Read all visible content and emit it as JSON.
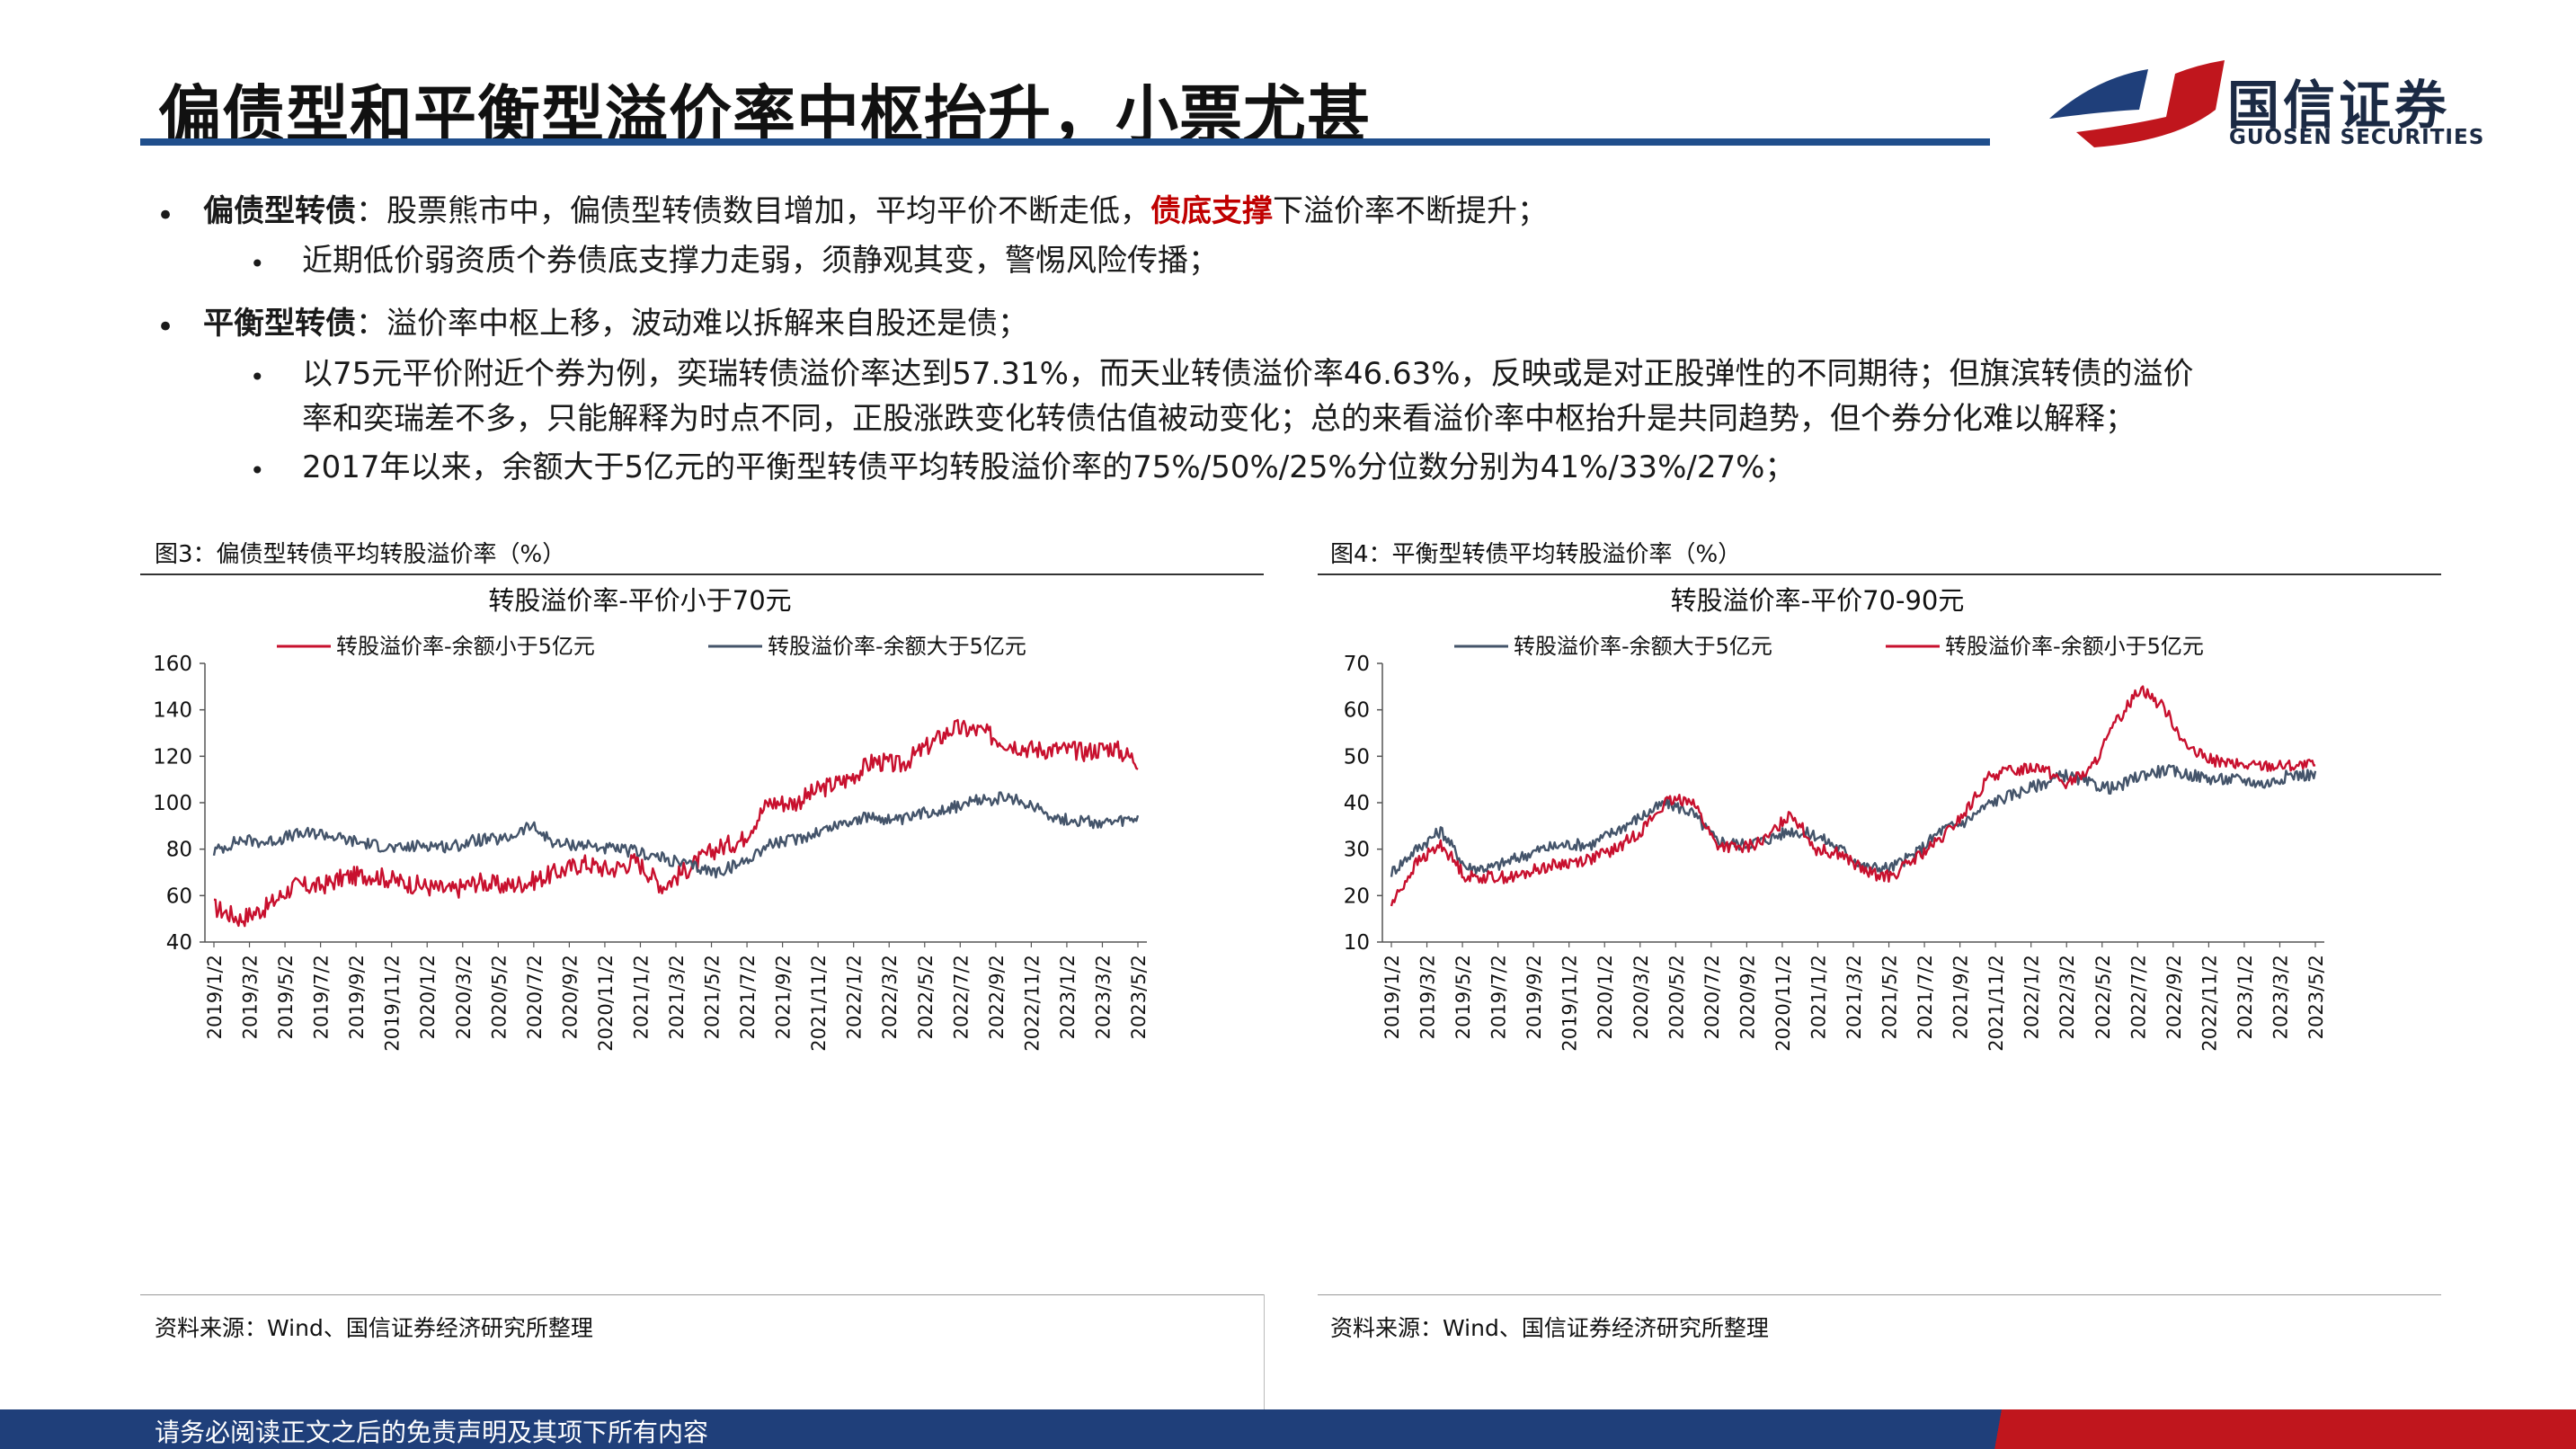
{
  "header": {
    "title": "偏债型和平衡型溢价率中枢抬升，小票尤甚",
    "logo_cn": "国信证券",
    "logo_en": "GUOSEN SECURITIES",
    "brand_colors": {
      "blue": "#1f4e8c",
      "red": "#c0161d"
    }
  },
  "bullets": {
    "b1_label": "偏债型转债",
    "b1_text_a": "：股票熊市中，偏债型转债数目增加，平均平价不断走低，",
    "b1_highlight": "债底支撑",
    "b1_text_b": "下溢价率不断提升；",
    "b1_sub1": "近期低价弱资质个券债底支撑力走弱，须静观其变，警惕风险传播；",
    "b2_label": "平衡型转债",
    "b2_text": "：溢价率中枢上移，波动难以拆解来自股还是债；",
    "b2_sub1_line1": "以75元平价附近个券为例，奕瑞转债溢价率达到57.31%，而天业转债溢价率46.63%，反映或是对正股弹性的不同期待；但旗滨转债的溢价",
    "b2_sub1_line2": "率和奕瑞差不多，只能解释为时点不同，正股涨跌变化转债估值被动变化；总的来看溢价率中枢抬升是共同趋势，但个券分化难以解释；",
    "b2_sub2": "2017年以来，余额大于5亿元的平衡型转债平均转股溢价率的75%/50%/25%分位数分别为41%/33%/27%；"
  },
  "panels": {
    "left_caption": "图3：偏债型转债平均转股溢价率（%）",
    "right_caption": "图4：平衡型转债平均转股溢价率（%）",
    "left_source": "资料来源：Wind、国信证券经济研究所整理",
    "right_source": "资料来源：Wind、国信证券经济研究所整理"
  },
  "footer": {
    "disclaimer": "请务必阅读正文之后的免责声明及其项下所有内容"
  },
  "chart_data": [
    {
      "type": "line",
      "title": "转股溢价率-平价小于70元",
      "ylim": [
        40,
        160
      ],
      "yticks": [
        40,
        60,
        80,
        100,
        120,
        140,
        160
      ],
      "xticks": [
        "2019/1/2",
        "2019/3/2",
        "2019/5/2",
        "2019/7/2",
        "2019/9/2",
        "2019/11/2",
        "2020/1/2",
        "2020/3/2",
        "2020/5/2",
        "2020/7/2",
        "2020/9/2",
        "2020/11/2",
        "2021/1/2",
        "2021/3/2",
        "2021/5/2",
        "2021/7/2",
        "2021/9/2",
        "2021/11/2",
        "2022/1/2",
        "2022/3/2",
        "2022/5/2",
        "2022/7/2",
        "2022/9/2",
        "2022/11/2",
        "2023/1/2",
        "2023/3/2",
        "2023/5/2"
      ],
      "series": [
        {
          "name": "转股溢价率-余额小于5亿元",
          "color": "#c8102e",
          "values": [
            55,
            50,
            55,
            64,
            64,
            68,
            69,
            66,
            64,
            62,
            66,
            64,
            66,
            70,
            74,
            71,
            75,
            64,
            72,
            80,
            84,
            100,
            100,
            106,
            110,
            118,
            116,
            124,
            132,
            131,
            126,
            123,
            123,
            122,
            124,
            118
          ]
        },
        {
          "name": "转股溢价率-余额大于5亿元",
          "color": "#44546a",
          "values": [
            79,
            84,
            83,
            86,
            87,
            84,
            82,
            80,
            82,
            81,
            84,
            84,
            90,
            82,
            82,
            80,
            79,
            76,
            73,
            70,
            74,
            82,
            84,
            88,
            92,
            94,
            92,
            96,
            98,
            101,
            102,
            99,
            93,
            92,
            91,
            93
          ]
        }
      ]
    },
    {
      "type": "line",
      "title": "转股溢价率-平价70-90元",
      "ylim": [
        10,
        70
      ],
      "yticks": [
        10,
        20,
        30,
        40,
        50,
        60,
        70
      ],
      "xticks": [
        "2019/1/2",
        "2019/3/2",
        "2019/5/2",
        "2019/7/2",
        "2019/9/2",
        "2019/11/2",
        "2020/1/2",
        "2020/3/2",
        "2020/5/2",
        "2020/7/2",
        "2020/9/2",
        "2020/11/2",
        "2021/1/2",
        "2021/3/2",
        "2021/5/2",
        "2021/7/2",
        "2021/9/2",
        "2021/11/2",
        "2022/1/2",
        "2022/3/2",
        "2022/5/2",
        "2022/7/2",
        "2022/9/2",
        "2022/11/2",
        "2023/1/2",
        "2023/3/2",
        "2023/5/2"
      ],
      "series": [
        {
          "name": "转股溢价率-余额大于5亿元",
          "color": "#44546a",
          "values": [
            25,
            30,
            34,
            26,
            26,
            28,
            30,
            31,
            31,
            34,
            37,
            40,
            38,
            32,
            31,
            32,
            34,
            33,
            30,
            26,
            26,
            29,
            34,
            36,
            40,
            42,
            44,
            46,
            44,
            43,
            46,
            47,
            46,
            45,
            45,
            44,
            46,
            46
          ]
        },
        {
          "name": "转股溢价率-余额小于5亿元",
          "color": "#c8102e",
          "values": [
            18,
            27,
            31,
            24,
            24,
            24,
            26,
            27,
            28,
            30,
            34,
            40,
            41,
            31,
            30,
            32,
            38,
            30,
            29,
            25,
            24,
            28,
            32,
            38,
            46,
            47,
            48,
            44,
            47,
            57,
            65,
            60,
            51,
            49,
            48,
            48,
            48,
            48
          ]
        }
      ]
    }
  ]
}
